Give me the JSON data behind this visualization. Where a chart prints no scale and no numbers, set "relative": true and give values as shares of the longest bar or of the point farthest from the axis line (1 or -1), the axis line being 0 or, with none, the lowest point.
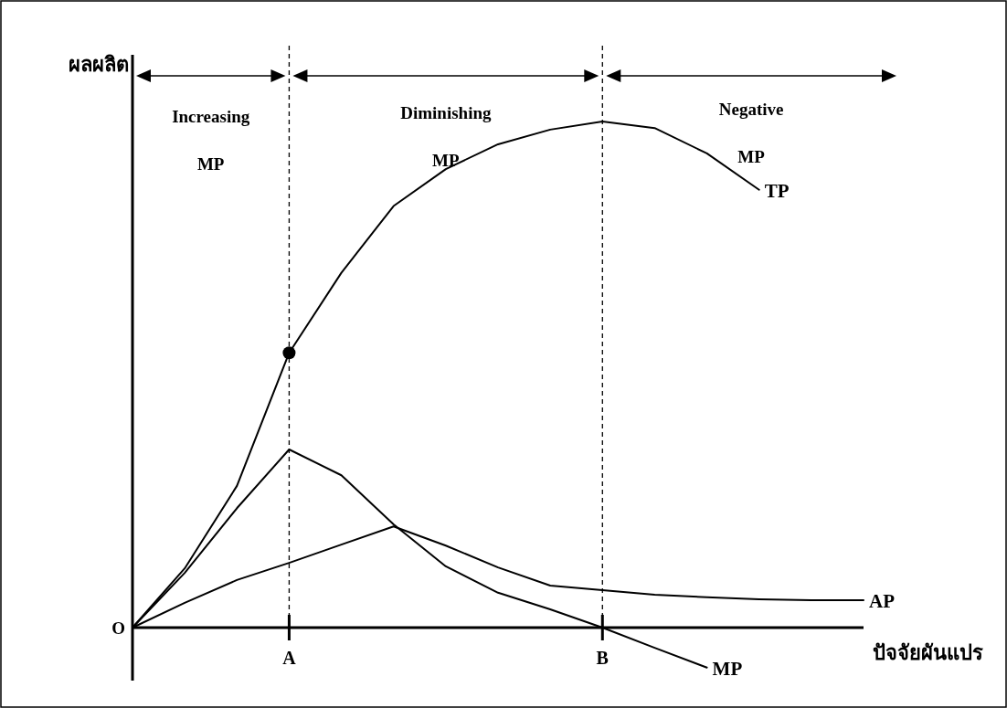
{
  "chart_data": {
    "type": "line",
    "relative": true,
    "xlabel": "ปัจจัยผันแปร",
    "ylabel": "ผลผลิต",
    "line_style": "solid",
    "categories": [
      null,
      null,
      null,
      "A",
      null,
      null,
      null,
      null,
      null,
      "B",
      null,
      null,
      null,
      null,
      null
    ],
    "series": [
      {
        "name": "TP",
        "color": "#000000",
        "values": [
          0,
          0.117,
          0.28,
          0.543,
          0.701,
          0.833,
          0.906,
          0.955,
          0.984,
          1.0,
          0.987,
          0.937,
          0.865,
          null,
          null
        ]
      },
      {
        "name": "AP",
        "color": "#000000",
        "values": [
          0,
          0.049,
          0.094,
          0.128,
          0.164,
          0.2,
          0.162,
          0.119,
          0.083,
          0.074,
          0.065,
          0.06,
          0.056,
          0.054,
          0.054
        ]
      },
      {
        "name": "MP",
        "color": "#000000",
        "values": [
          0,
          0.108,
          0.236,
          0.352,
          0.301,
          0.204,
          0.121,
          0.069,
          0.036,
          0,
          -0.04,
          -0.079,
          null,
          null,
          null
        ]
      },
      {
        "type": "scatter",
        "marker": "circle",
        "color": "#000000",
        "x": [
          "A"
        ],
        "values": [
          0.543
        ]
      }
    ],
    "ref_lines": [
      {
        "axis": "x",
        "value": "A",
        "line_style": "dashed"
      },
      {
        "axis": "x",
        "value": "B",
        "line_style": "dashed"
      }
    ],
    "annotations": [
      "Increasing MP",
      "Diminishing MP",
      "Negative MP",
      "O"
    ]
  }
}
